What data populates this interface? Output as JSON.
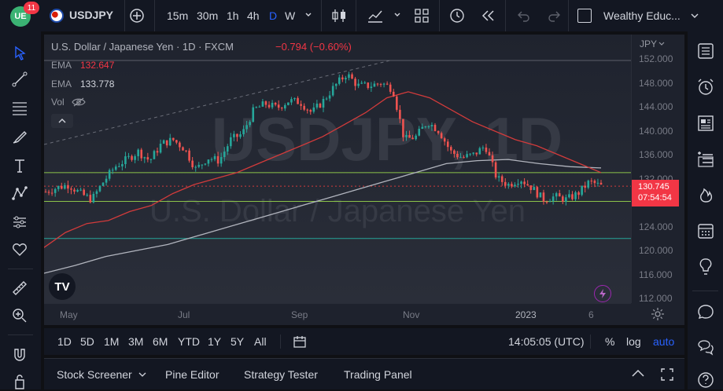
{
  "header": {
    "notifications": "11",
    "symbol": "USDJPY",
    "timeframes": [
      "15m",
      "30m",
      "1h",
      "4h",
      "D",
      "W"
    ],
    "active_timeframe": "D",
    "layout_name": "Wealthy Educ..."
  },
  "legend": {
    "title": "U.S. Dollar / Japanese Yen · 1D · FXCM",
    "change": "−0.794 (−0.60%)",
    "ema1_label": "EMA",
    "ema1_value": "132.647",
    "ema2_label": "EMA",
    "ema2_value": "133.778",
    "vol_label": "Vol"
  },
  "watermark": {
    "big": "USDJPY, 1D",
    "sub": "U.S. Dollar / Japanese Yen"
  },
  "price_axis": {
    "currency": "JPY",
    "ticks": [
      "152.000",
      "148.000",
      "144.000",
      "140.000",
      "136.000",
      "132.000",
      "128.000",
      "124.000",
      "120.000",
      "116.000",
      "112.000"
    ],
    "last_price": "130.745",
    "countdown": "07:54:54"
  },
  "time_axis": {
    "labels": [
      "May",
      "Jul",
      "Sep",
      "Nov",
      "2023",
      "6"
    ]
  },
  "bottom": {
    "ranges": [
      "1D",
      "5D",
      "1M",
      "3M",
      "6M",
      "YTD",
      "1Y",
      "5Y",
      "All"
    ],
    "clock": "14:05:05 (UTC)",
    "percent": "%",
    "log": "log",
    "auto": "auto"
  },
  "panels": {
    "items": [
      "Stock Screener",
      "Pine Editor",
      "Strategy Tester",
      "Trading Panel"
    ]
  },
  "colors": {
    "up": "#26a69a",
    "down": "#ef5350",
    "ema_fast": "#d23b3b",
    "ema_slow": "#b2b5be",
    "hline": "#8bc34a",
    "accent": "#2962ff",
    "price_label": "#f23645"
  },
  "chart_data": {
    "type": "candlestick",
    "symbol": "USDJPY",
    "timeframe": "1D",
    "ylim": [
      112,
      153
    ],
    "x_labels": [
      "May",
      "Jul",
      "Sep",
      "Nov",
      "2023",
      "6"
    ],
    "close_path": [
      129.8,
      130.5,
      131.0,
      129.5,
      128.5,
      131.5,
      134.0,
      135.2,
      136.5,
      135.0,
      137.8,
      138.5,
      137.0,
      133.5,
      135.5,
      135.0,
      138.5,
      139.5,
      143.5,
      144.5,
      143.8,
      145.0,
      144.8,
      143.0,
      145.0,
      147.5,
      149.5,
      147.5,
      147.5,
      148.0,
      147.0,
      138.5,
      139.0,
      141.5,
      140.0,
      136.5,
      135.5,
      136.0,
      137.5,
      132.0,
      131.0,
      132.0,
      130.5,
      128.5,
      129.0,
      128.5,
      129.5,
      131.5,
      130.745
    ],
    "ema_fast_path": [
      120.5,
      123.0,
      124.5,
      125.0,
      126.5,
      127.5,
      129.5,
      131.0,
      132.0,
      133.0,
      134.5,
      136.0,
      137.5,
      139.0,
      141.0,
      143.0,
      145.5,
      146.5,
      145.5,
      143.5,
      141.5,
      140.0,
      138.5,
      137.5,
      136.0,
      134.5,
      133.0
    ],
    "ema_slow_path": [
      116.2,
      117.5,
      119.0,
      120.0,
      121.0,
      122.5,
      124.0,
      125.5,
      127.0,
      128.5,
      130.0,
      131.5,
      133.0,
      134.5,
      135.0,
      135.2,
      134.5,
      134.0,
      133.778
    ],
    "horizontal_levels": [
      133.0,
      128.2,
      122.0,
      130.745
    ],
    "last_price": 130.745
  }
}
